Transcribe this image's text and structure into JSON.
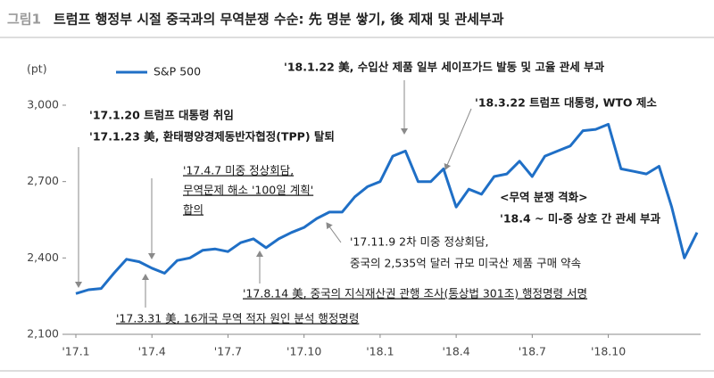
{
  "chart_data": {
    "type": "line",
    "figure_label": "그림1",
    "title": "트럼프 행정부 시절 중국과의 무역분쟁 수순: 先 명분 쌓기, 後 제재 및 관세부과",
    "y_label": "(pt)",
    "categories": [
      "'17.1",
      null,
      null,
      null,
      null,
      null,
      "'17.4",
      null,
      null,
      null,
      null,
      null,
      "'17.7",
      null,
      null,
      null,
      null,
      null,
      "'17.10",
      null,
      null,
      null,
      null,
      null,
      "'18.1",
      null,
      null,
      null,
      null,
      null,
      "'18.4",
      null,
      null,
      null,
      null,
      null,
      "'18.7",
      null,
      null,
      null,
      null,
      null,
      "'18.10",
      null,
      null,
      null,
      null,
      null,
      null,
      null
    ],
    "series": [
      {
        "name": "S&P 500",
        "color": "#1f6fc6",
        "values": [
          2260,
          2275,
          2280,
          2340,
          2395,
          2385,
          2360,
          2340,
          2390,
          2400,
          2430,
          2435,
          2425,
          2460,
          2475,
          2440,
          2475,
          2500,
          2520,
          2555,
          2580,
          2580,
          2640,
          2680,
          2700,
          2800,
          2820,
          2700,
          2700,
          2750,
          2600,
          2670,
          2650,
          2720,
          2730,
          2780,
          2720,
          2800,
          2820,
          2840,
          2900,
          2905,
          2925,
          2750,
          2740,
          2730,
          2760,
          2600,
          2400,
          2500
        ]
      }
    ],
    "ylim": [
      2100,
      3000
    ],
    "yticks": [
      {
        "value": 2100,
        "label": "2,100"
      },
      {
        "value": 2400,
        "label": "2,400"
      },
      {
        "value": 2700,
        "label": "2,700"
      },
      {
        "value": 3000,
        "label": "3,000"
      }
    ],
    "grid": false,
    "annotations": [
      "'17.1.20 트럼프 대통령 취임",
      "'17.1.23 美, 환태평양경제동반자협정(TPP) 탈퇴",
      "'17.4.7 미중 정상회담,",
      "무역문제 해소 '100일 계획'",
      "합의",
      "'17.3.31 美, 16개국 무역 적자 원인 분석 행정명령",
      "'17.8.14 美, 중국의 지식재산권 관행 조사(통상법 301조) 행정명령 서명",
      "'17.11.9 2차 미중 정상회담,",
      "중국의 2,535억 달러 규모 미국산 제품 구매 약속",
      "'18.1.22 美, 수입산 제품 일부 세이프가드 발동 및 고율 관세 부과",
      "'18.3.22 트럼프 대통령, WTO 제소",
      "<무역 분쟁 격화>",
      "'18.4 ~ 미-중 상호 간 관세 부과"
    ]
  }
}
